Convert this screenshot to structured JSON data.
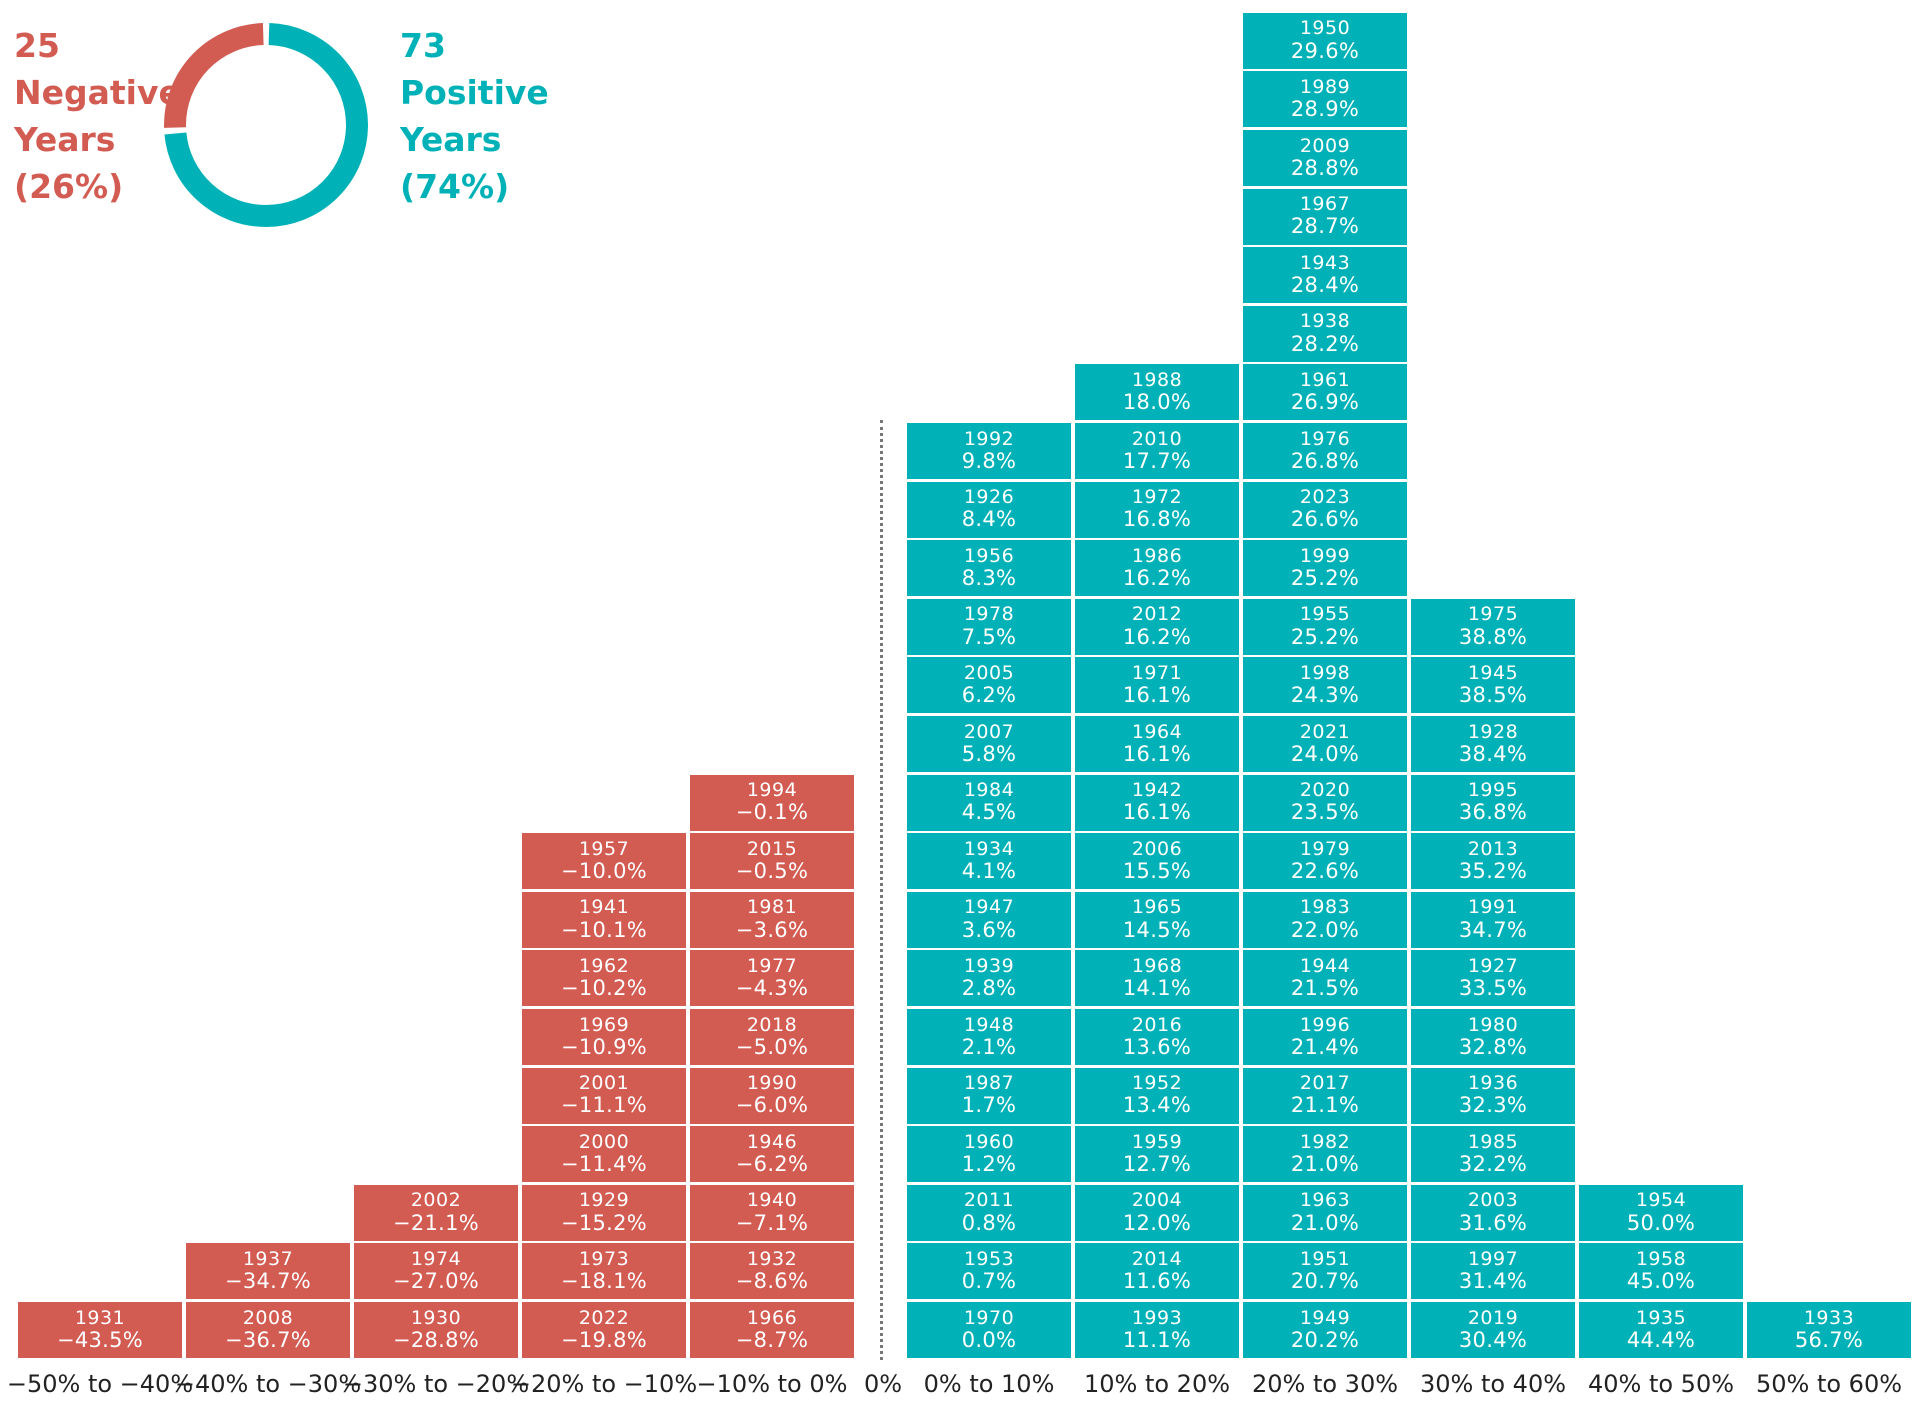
{
  "colors": {
    "negative": "#d25b52",
    "positive": "#00b2b7",
    "axis_text": "#222222"
  },
  "summary": {
    "negative": {
      "count": "25",
      "line1": "Negative",
      "line2": "Years",
      "pct": "(26%)",
      "fraction": 0.26
    },
    "positive": {
      "count": "73",
      "line1": "Positive",
      "line2": "Years",
      "pct": "(74%)",
      "fraction": 0.74
    }
  },
  "chart_data": {
    "type": "histogram-stack",
    "zero_label": "0%",
    "bins": [
      {
        "label": "−50% to −40%",
        "sign": "negative",
        "cells": [
          {
            "year": "1931",
            "value": "−43.5%"
          }
        ]
      },
      {
        "label": "−40% to −30%",
        "sign": "negative",
        "cells": [
          {
            "year": "2008",
            "value": "−36.7%"
          },
          {
            "year": "1937",
            "value": "−34.7%"
          }
        ]
      },
      {
        "label": "−30% to −20%",
        "sign": "negative",
        "cells": [
          {
            "year": "1930",
            "value": "−28.8%"
          },
          {
            "year": "1974",
            "value": "−27.0%"
          },
          {
            "year": "2002",
            "value": "−21.1%"
          }
        ]
      },
      {
        "label": "−20% to −10%",
        "sign": "negative",
        "cells": [
          {
            "year": "2022",
            "value": "−19.8%"
          },
          {
            "year": "1973",
            "value": "−18.1%"
          },
          {
            "year": "1929",
            "value": "−15.2%"
          },
          {
            "year": "2000",
            "value": "−11.4%"
          },
          {
            "year": "2001",
            "value": "−11.1%"
          },
          {
            "year": "1969",
            "value": "−10.9%"
          },
          {
            "year": "1962",
            "value": "−10.2%"
          },
          {
            "year": "1941",
            "value": "−10.1%"
          },
          {
            "year": "1957",
            "value": "−10.0%"
          }
        ]
      },
      {
        "label": "−10% to 0%",
        "sign": "negative",
        "cells": [
          {
            "year": "1966",
            "value": "−8.7%"
          },
          {
            "year": "1932",
            "value": "−8.6%"
          },
          {
            "year": "1940",
            "value": "−7.1%"
          },
          {
            "year": "1946",
            "value": "−6.2%"
          },
          {
            "year": "1990",
            "value": "−6.0%"
          },
          {
            "year": "2018",
            "value": "−5.0%"
          },
          {
            "year": "1977",
            "value": "−4.3%"
          },
          {
            "year": "1981",
            "value": "−3.6%"
          },
          {
            "year": "2015",
            "value": "−0.5%"
          },
          {
            "year": "1994",
            "value": "−0.1%"
          }
        ]
      },
      {
        "label": "0% to 10%",
        "sign": "positive",
        "cells": [
          {
            "year": "1970",
            "value": "0.0%"
          },
          {
            "year": "1953",
            "value": "0.7%"
          },
          {
            "year": "2011",
            "value": "0.8%"
          },
          {
            "year": "1960",
            "value": "1.2%"
          },
          {
            "year": "1987",
            "value": "1.7%"
          },
          {
            "year": "1948",
            "value": "2.1%"
          },
          {
            "year": "1939",
            "value": "2.8%"
          },
          {
            "year": "1947",
            "value": "3.6%"
          },
          {
            "year": "1934",
            "value": "4.1%"
          },
          {
            "year": "1984",
            "value": "4.5%"
          },
          {
            "year": "2007",
            "value": "5.8%"
          },
          {
            "year": "2005",
            "value": "6.2%"
          },
          {
            "year": "1978",
            "value": "7.5%"
          },
          {
            "year": "1956",
            "value": "8.3%"
          },
          {
            "year": "1926",
            "value": "8.4%"
          },
          {
            "year": "1992",
            "value": "9.8%"
          }
        ]
      },
      {
        "label": "10% to 20%",
        "sign": "positive",
        "cells": [
          {
            "year": "1993",
            "value": "11.1%"
          },
          {
            "year": "2014",
            "value": "11.6%"
          },
          {
            "year": "2004",
            "value": "12.0%"
          },
          {
            "year": "1959",
            "value": "12.7%"
          },
          {
            "year": "1952",
            "value": "13.4%"
          },
          {
            "year": "2016",
            "value": "13.6%"
          },
          {
            "year": "1968",
            "value": "14.1%"
          },
          {
            "year": "1965",
            "value": "14.5%"
          },
          {
            "year": "2006",
            "value": "15.5%"
          },
          {
            "year": "1942",
            "value": "16.1%"
          },
          {
            "year": "1964",
            "value": "16.1%"
          },
          {
            "year": "1971",
            "value": "16.1%"
          },
          {
            "year": "2012",
            "value": "16.2%"
          },
          {
            "year": "1986",
            "value": "16.2%"
          },
          {
            "year": "1972",
            "value": "16.8%"
          },
          {
            "year": "2010",
            "value": "17.7%"
          },
          {
            "year": "1988",
            "value": "18.0%"
          }
        ]
      },
      {
        "label": "20% to 30%",
        "sign": "positive",
        "cells": [
          {
            "year": "1949",
            "value": "20.2%"
          },
          {
            "year": "1951",
            "value": "20.7%"
          },
          {
            "year": "1963",
            "value": "21.0%"
          },
          {
            "year": "1982",
            "value": "21.0%"
          },
          {
            "year": "2017",
            "value": "21.1%"
          },
          {
            "year": "1996",
            "value": "21.4%"
          },
          {
            "year": "1944",
            "value": "21.5%"
          },
          {
            "year": "1983",
            "value": "22.0%"
          },
          {
            "year": "1979",
            "value": "22.6%"
          },
          {
            "year": "2020",
            "value": "23.5%"
          },
          {
            "year": "2021",
            "value": "24.0%"
          },
          {
            "year": "1998",
            "value": "24.3%"
          },
          {
            "year": "1955",
            "value": "25.2%"
          },
          {
            "year": "1999",
            "value": "25.2%"
          },
          {
            "year": "2023",
            "value": "26.6%"
          },
          {
            "year": "1976",
            "value": "26.8%"
          },
          {
            "year": "1961",
            "value": "26.9%"
          },
          {
            "year": "1938",
            "value": "28.2%"
          },
          {
            "year": "1943",
            "value": "28.4%"
          },
          {
            "year": "1967",
            "value": "28.7%"
          },
          {
            "year": "2009",
            "value": "28.8%"
          },
          {
            "year": "1989",
            "value": "28.9%"
          },
          {
            "year": "1950",
            "value": "29.6%"
          }
        ]
      },
      {
        "label": "30% to 40%",
        "sign": "positive",
        "cells": [
          {
            "year": "2019",
            "value": "30.4%"
          },
          {
            "year": "1997",
            "value": "31.4%"
          },
          {
            "year": "2003",
            "value": "31.6%"
          },
          {
            "year": "1985",
            "value": "32.2%"
          },
          {
            "year": "1936",
            "value": "32.3%"
          },
          {
            "year": "1980",
            "value": "32.8%"
          },
          {
            "year": "1927",
            "value": "33.5%"
          },
          {
            "year": "1991",
            "value": "34.7%"
          },
          {
            "year": "2013",
            "value": "35.2%"
          },
          {
            "year": "1995",
            "value": "36.8%"
          },
          {
            "year": "1928",
            "value": "38.4%"
          },
          {
            "year": "1945",
            "value": "38.5%"
          },
          {
            "year": "1975",
            "value": "38.8%"
          }
        ]
      },
      {
        "label": "40% to 50%",
        "sign": "positive",
        "cells": [
          {
            "year": "1935",
            "value": "44.4%"
          },
          {
            "year": "1958",
            "value": "45.0%"
          },
          {
            "year": "1954",
            "value": "50.0%"
          }
        ]
      },
      {
        "label": "50% to 60%",
        "sign": "positive",
        "cells": [
          {
            "year": "1933",
            "value": "56.7%"
          }
        ]
      }
    ]
  }
}
